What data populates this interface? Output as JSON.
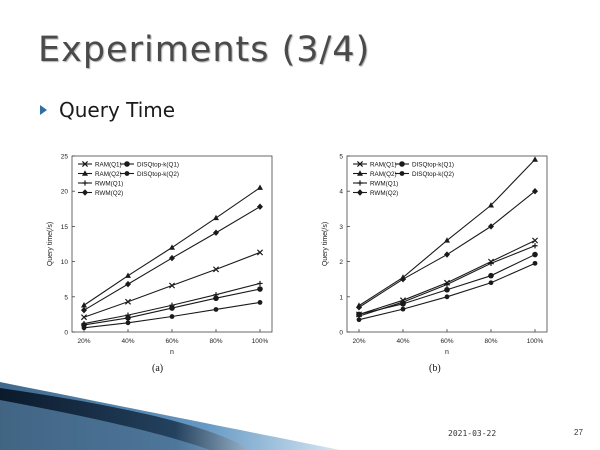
{
  "slide": {
    "title": "Experiments (3/4)",
    "bullet": "Query Time",
    "date": "2021-03-22",
    "page_number": "27"
  },
  "colors": {
    "title": "#4a4a4a",
    "bullet_accent": "#2f6fa4",
    "series": "#1a1a1a"
  },
  "chart_data": [
    {
      "type": "line",
      "caption": "(a)",
      "xlabel": "n",
      "ylabel": "Query time(/s)",
      "categories": [
        "20%",
        "40%",
        "60%",
        "80%",
        "100%"
      ],
      "ylim": [
        0,
        25
      ],
      "yticks": [
        0,
        5,
        10,
        15,
        20,
        25
      ],
      "legend_position": "top-left",
      "series": [
        {
          "name": "RAM(Q1)",
          "marker": "cross",
          "values": [
            2.1,
            4.3,
            6.6,
            8.9,
            11.3
          ]
        },
        {
          "name": "RAM(Q2)",
          "marker": "triangle",
          "values": [
            3.8,
            8.0,
            12.0,
            16.2,
            20.5
          ]
        },
        {
          "name": "RWM(Q1)",
          "marker": "plus",
          "values": [
            1.2,
            2.4,
            3.8,
            5.3,
            6.9
          ]
        },
        {
          "name": "RWM(Q2)",
          "marker": "diamond",
          "values": [
            3.1,
            6.8,
            10.5,
            14.1,
            17.8
          ]
        },
        {
          "name": "DISQtop-k(Q1)",
          "marker": "circle",
          "values": [
            1.0,
            2.0,
            3.4,
            4.8,
            6.1
          ]
        },
        {
          "name": "DISQtop-k(Q2)",
          "marker": "dot",
          "values": [
            0.6,
            1.3,
            2.2,
            3.2,
            4.2
          ]
        }
      ]
    },
    {
      "type": "line",
      "caption": "(b)",
      "xlabel": "n",
      "ylabel": "Query time(/s)",
      "categories": [
        "20%",
        "40%",
        "60%",
        "80%",
        "100%"
      ],
      "ylim": [
        0,
        5
      ],
      "yticks": [
        0,
        1,
        2,
        3,
        4,
        5
      ],
      "legend_position": "top-left",
      "series": [
        {
          "name": "RAM(Q1)",
          "marker": "cross",
          "values": [
            0.5,
            0.9,
            1.4,
            2.0,
            2.6
          ]
        },
        {
          "name": "RAM(Q2)",
          "marker": "triangle",
          "values": [
            0.75,
            1.55,
            2.6,
            3.6,
            4.9
          ]
        },
        {
          "name": "RWM(Q1)",
          "marker": "plus",
          "values": [
            0.45,
            0.85,
            1.35,
            1.95,
            2.45
          ]
        },
        {
          "name": "RWM(Q2)",
          "marker": "diamond",
          "values": [
            0.7,
            1.5,
            2.2,
            3.0,
            4.0
          ]
        },
        {
          "name": "DISQtop-k(Q1)",
          "marker": "circle",
          "values": [
            0.5,
            0.8,
            1.2,
            1.6,
            2.2
          ]
        },
        {
          "name": "DISQtop-k(Q2)",
          "marker": "dot",
          "values": [
            0.35,
            0.65,
            1.0,
            1.4,
            1.95
          ]
        }
      ]
    }
  ]
}
